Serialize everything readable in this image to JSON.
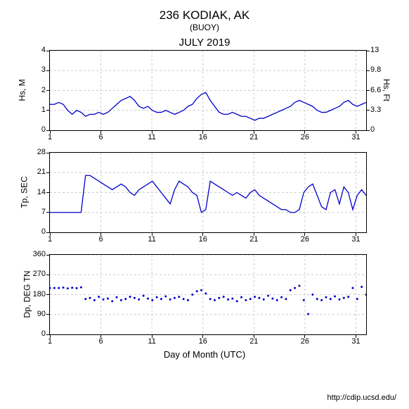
{
  "station_title": "236 KODIAK, AK",
  "station_subtitle": "(BUOY)",
  "month_title": "JULY 2019",
  "xaxis_label": "Day of Month (UTC)",
  "footer_url": "http://cdip.ucsd.edu/",
  "line_color": "#0000cc",
  "gridline_color": "#cccccc",
  "xticks": [
    1,
    6,
    11,
    16,
    21,
    26,
    31
  ],
  "xlim": [
    1,
    32
  ],
  "panels": [
    {
      "ylabel_left": "Hs, M",
      "ylabel_right": "Hs, Ft",
      "ylim": [
        0,
        4
      ],
      "yticks_left": [
        0,
        1,
        2,
        3,
        4
      ],
      "yticks_right": [
        0,
        3.3,
        6.6,
        9.8,
        13
      ],
      "type": "line",
      "data": [
        1.3,
        1.3,
        1.4,
        1.3,
        1.0,
        0.8,
        1.0,
        0.9,
        0.7,
        0.8,
        0.8,
        0.9,
        0.8,
        0.9,
        1.1,
        1.3,
        1.5,
        1.6,
        1.7,
        1.5,
        1.2,
        1.1,
        1.2,
        1.0,
        0.9,
        0.9,
        1.0,
        0.9,
        0.8,
        0.9,
        1.0,
        1.2,
        1.3,
        1.6,
        1.8,
        1.9,
        1.5,
        1.2,
        0.9,
        0.8,
        0.8,
        0.9,
        0.8,
        0.7,
        0.7,
        0.6,
        0.5,
        0.6,
        0.6,
        0.7,
        0.8,
        0.9,
        1.0,
        1.1,
        1.2,
        1.4,
        1.5,
        1.4,
        1.3,
        1.2,
        1.0,
        0.9,
        0.9,
        1.0,
        1.1,
        1.2,
        1.4,
        1.5,
        1.3,
        1.2,
        1.3,
        1.4
      ]
    },
    {
      "ylabel_left": "Tp, SEC",
      "ylim": [
        0,
        28
      ],
      "yticks_left": [
        0,
        7,
        14,
        21,
        28
      ],
      "type": "line",
      "data": [
        7,
        7,
        7,
        7,
        7,
        7,
        7,
        7,
        20,
        20,
        19,
        18,
        17,
        16,
        15,
        16,
        17,
        16,
        14,
        13,
        15,
        16,
        17,
        18,
        16,
        14,
        12,
        10,
        15,
        18,
        17,
        16,
        14,
        13,
        7,
        8,
        18,
        17,
        16,
        15,
        14,
        13,
        14,
        13,
        12,
        14,
        15,
        13,
        12,
        11,
        10,
        9,
        8,
        8,
        7,
        7,
        8,
        14,
        16,
        17,
        13,
        9,
        8,
        14,
        15,
        10,
        16,
        14,
        8,
        13,
        15,
        13
      ]
    },
    {
      "ylabel_left": "Dp, DEG TN",
      "ylim": [
        0,
        360
      ],
      "yticks_left": [
        0,
        90,
        180,
        270,
        360
      ],
      "type": "scatter",
      "data": [
        210,
        210,
        210,
        212,
        208,
        211,
        209,
        213,
        160,
        165,
        155,
        170,
        158,
        162,
        150,
        168,
        155,
        160,
        170,
        165,
        158,
        175,
        162,
        155,
        168,
        160,
        172,
        158,
        165,
        170,
        160,
        155,
        180,
        195,
        200,
        185,
        160,
        155,
        165,
        170,
        158,
        162,
        150,
        168,
        155,
        160,
        170,
        165,
        158,
        175,
        162,
        155,
        168,
        160,
        200,
        210,
        220,
        155,
        92,
        180,
        160,
        155,
        168,
        160,
        172,
        158,
        165,
        170,
        210,
        160,
        215,
        180
      ]
    }
  ]
}
